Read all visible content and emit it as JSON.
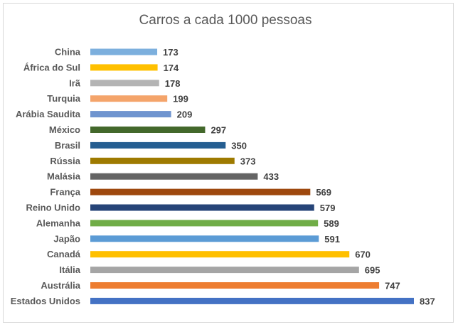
{
  "chart_data": {
    "type": "bar",
    "orientation": "horizontal",
    "title": "Carros a cada 1000 pessoas",
    "xlabel": "",
    "ylabel": "",
    "xlim": [
      0,
      837
    ],
    "grid": false,
    "legend": "none",
    "categories": [
      "China",
      "África do Sul",
      "Irã",
      "Turquia",
      "Arábia Saudita",
      "México",
      "Brasil",
      "Rússia",
      "Malásia",
      "França",
      "Reino Unido",
      "Alemanha",
      "Japão",
      "Canadá",
      "Itália",
      "Austrália",
      "Estados Unidos"
    ],
    "values": [
      173,
      174,
      178,
      199,
      209,
      297,
      350,
      373,
      433,
      569,
      579,
      589,
      591,
      670,
      695,
      747,
      837
    ],
    "colors": [
      "#7cafdd",
      "#ffc000",
      "#b4b4b4",
      "#f4a46a",
      "#6f94cf",
      "#43682b",
      "#255e91",
      "#9e7a00",
      "#646464",
      "#9e480e",
      "#264478",
      "#70ad47",
      "#5b9bd5",
      "#ffc000",
      "#a5a5a5",
      "#ed7d31",
      "#4472c4"
    ]
  }
}
